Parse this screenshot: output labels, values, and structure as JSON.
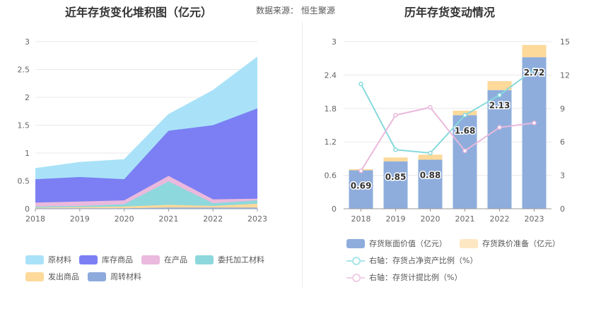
{
  "header": {
    "left_title": "近年存货变化堆积图（亿元）",
    "source": "数据来源： 恒生聚源",
    "right_title": "历年存货变动情况"
  },
  "chart_data": [
    {
      "type": "area",
      "stacked": true,
      "title": "近年存货变化堆积图（亿元）",
      "categories": [
        "2018",
        "2019",
        "2020",
        "2021",
        "2022",
        "2023"
      ],
      "ylim": [
        0,
        3
      ],
      "yticks": [
        0,
        0.5,
        1,
        1.5,
        2,
        2.5,
        3
      ],
      "series": [
        {
          "name": "周转材料",
          "color": "#8eaadc",
          "values": [
            0.01,
            0.01,
            0.01,
            0.02,
            0.02,
            0.02
          ]
        },
        {
          "name": "发出商品",
          "color": "#fdd99a",
          "values": [
            0.01,
            0.02,
            0.03,
            0.05,
            0.03,
            0.07
          ]
        },
        {
          "name": "委托加工材料",
          "color": "#8dd8dc",
          "values": [
            0.02,
            0.02,
            0.04,
            0.42,
            0.05,
            0.06
          ]
        },
        {
          "name": "在产品",
          "color": "#ebb9dd",
          "values": [
            0.07,
            0.08,
            0.07,
            0.1,
            0.07,
            0.03
          ]
        },
        {
          "name": "库存商品",
          "color": "#7b7ff3",
          "values": [
            0.42,
            0.44,
            0.38,
            0.81,
            1.33,
            1.62
          ]
        },
        {
          "name": "原材料",
          "color": "#a9e2f8",
          "values": [
            0.19,
            0.26,
            0.35,
            0.29,
            0.62,
            0.92
          ]
        }
      ],
      "legend": [
        "原材料",
        "库存商品",
        "在产品",
        "委托加工材料",
        "发出商品",
        "周转材料"
      ]
    },
    {
      "type": "bar",
      "stacked": true,
      "title": "历年存货变动情况",
      "categories": [
        "2018",
        "2019",
        "2020",
        "2021",
        "2022",
        "2023"
      ],
      "ylim": [
        0,
        3
      ],
      "yticks": [
        "0",
        "0.6",
        "1.2",
        "1.8",
        "2.4",
        "3"
      ],
      "y2lim": [
        0,
        15
      ],
      "y2ticks": [
        "0",
        "3",
        "6",
        "9",
        "12",
        "15"
      ],
      "bar_series": [
        {
          "name": "存货账面价值（亿元）",
          "color": "#8eaddc",
          "values": [
            0.69,
            0.85,
            0.88,
            1.68,
            2.13,
            2.72
          ],
          "labels": [
            "0.69",
            "0.85",
            "0.88",
            "1.68",
            "2.13",
            "2.72"
          ]
        },
        {
          "name": "存货跌价准备（亿元）",
          "color": "#fdd99a",
          "values": [
            0.02,
            0.07,
            0.09,
            0.08,
            0.16,
            0.22
          ]
        }
      ],
      "line_series": [
        {
          "name": "右轴：存货占净资产比例（%）",
          "color": "#86d9dc",
          "values": [
            11.2,
            5.3,
            5.0,
            8.4,
            10.2,
            12.5
          ]
        },
        {
          "name": "右轴：存货计提比例（%）",
          "color": "#eab8dc",
          "values": [
            3.4,
            8.4,
            9.1,
            5.2,
            7.3,
            7.7
          ]
        }
      ]
    }
  ]
}
